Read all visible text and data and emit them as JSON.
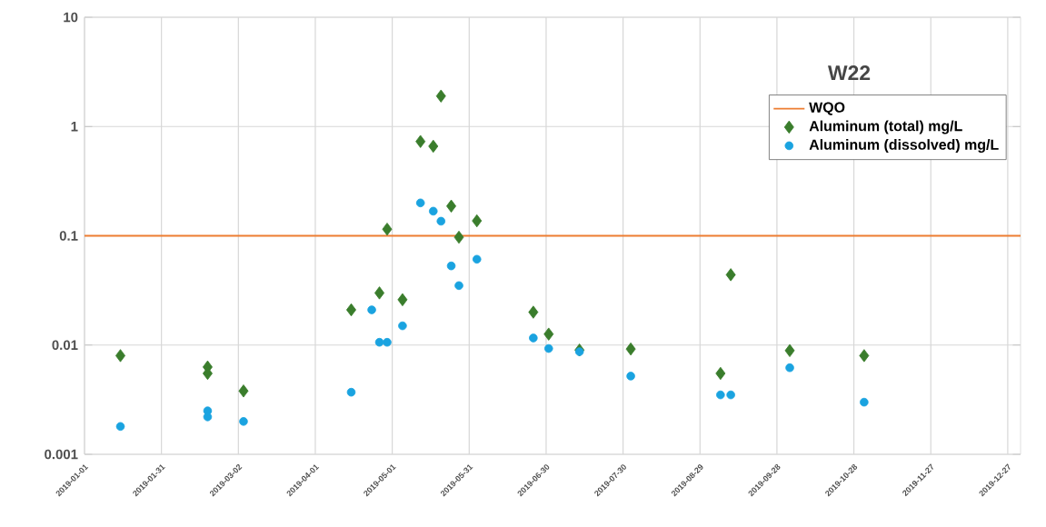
{
  "chart_data": {
    "type": "scatter",
    "title": "W22",
    "xlim": [
      "2019-01-01",
      "2020-01-01"
    ],
    "xticks": [
      "2019-01-01",
      "2019-01-31",
      "2019-03-02",
      "2019-04-01",
      "2019-05-01",
      "2019-05-31",
      "2019-06-30",
      "2019-07-30",
      "2019-08-29",
      "2019-09-28",
      "2019-10-28",
      "2019-11-27",
      "2019-12-27"
    ],
    "ylim": [
      0.001,
      10
    ],
    "yticks": [
      0.001,
      0.01,
      0.1,
      1,
      10
    ],
    "log": "y",
    "grid": true,
    "legend": "top right",
    "ref_lines": [
      {
        "axis": "y",
        "value": 0.1,
        "label": "WQO",
        "color": "#ed7d31"
      }
    ],
    "series": [
      {
        "name": "Aluminum (total) mg/L",
        "color": "#3a7d2c",
        "marker": "diamond",
        "x": [
          "2019-01-15",
          "2019-02-18",
          "2019-02-18",
          "2019-03-04",
          "2019-04-15",
          "2019-04-26",
          "2019-04-29",
          "2019-05-05",
          "2019-05-12",
          "2019-05-17",
          "2019-05-20",
          "2019-05-24",
          "2019-05-27",
          "2019-06-03",
          "2019-06-25",
          "2019-07-01",
          "2019-07-13",
          "2019-08-02",
          "2019-09-06",
          "2019-09-10",
          "2019-10-03",
          "2019-11-01"
        ],
        "values": [
          0.008,
          0.0063,
          0.0055,
          0.0038,
          0.021,
          0.03,
          0.115,
          0.026,
          0.73,
          0.66,
          1.9,
          0.187,
          0.097,
          0.137,
          0.02,
          0.0126,
          0.009,
          0.0092,
          0.0055,
          0.044,
          0.0089,
          0.008
        ]
      },
      {
        "name": "Aluminum (dissolved) mg/L",
        "color": "#1aa3e0",
        "marker": "circle",
        "x": [
          "2019-01-15",
          "2019-02-18",
          "2019-02-18",
          "2019-03-04",
          "2019-04-15",
          "2019-04-23",
          "2019-04-26",
          "2019-04-29",
          "2019-05-05",
          "2019-05-12",
          "2019-05-17",
          "2019-05-20",
          "2019-05-24",
          "2019-05-27",
          "2019-06-03",
          "2019-06-25",
          "2019-07-01",
          "2019-07-13",
          "2019-08-02",
          "2019-09-06",
          "2019-09-10",
          "2019-10-03",
          "2019-11-01"
        ],
        "values": [
          0.0018,
          0.0025,
          0.0022,
          0.002,
          0.0037,
          0.021,
          0.0106,
          0.0106,
          0.015,
          0.2,
          0.168,
          0.136,
          0.053,
          0.035,
          0.061,
          0.0116,
          0.0093,
          0.0087,
          0.0052,
          0.0035,
          0.0035,
          0.0062,
          0.003
        ]
      }
    ]
  }
}
